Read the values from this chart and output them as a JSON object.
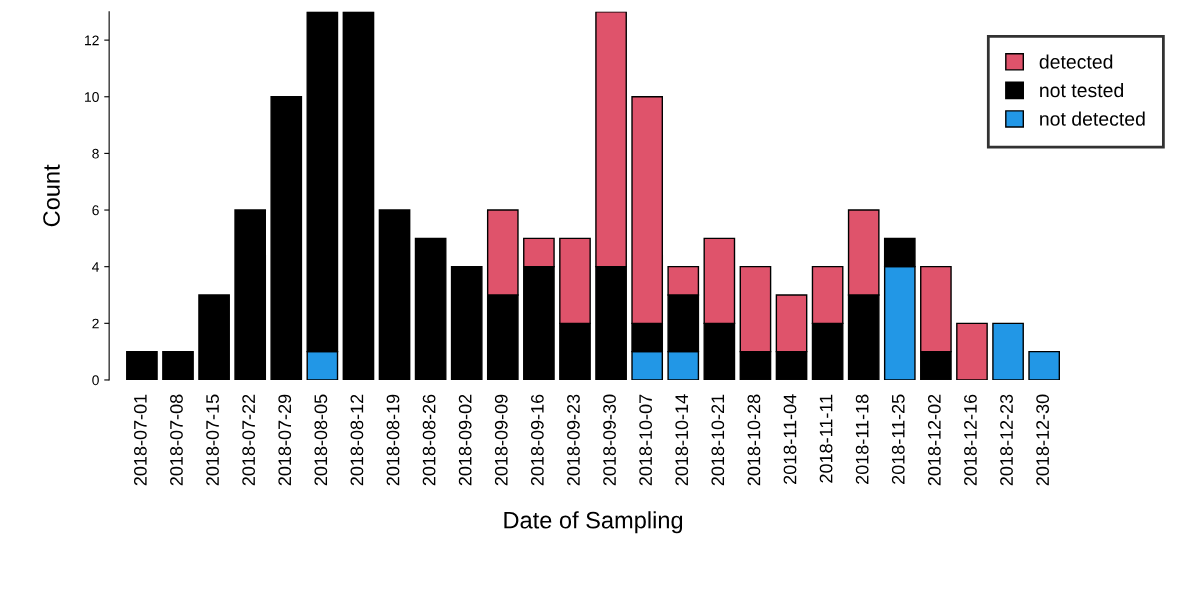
{
  "chart_data": {
    "type": "bar",
    "stacked": true,
    "xlabel": "Date of Sampling",
    "ylabel": "Count",
    "categories": [
      "2018-07-01",
      "2018-07-08",
      "2018-07-15",
      "2018-07-22",
      "2018-07-29",
      "2018-08-05",
      "2018-08-12",
      "2018-08-19",
      "2018-08-26",
      "2018-09-02",
      "2018-09-09",
      "2018-09-16",
      "2018-09-23",
      "2018-09-30",
      "2018-10-07",
      "2018-10-14",
      "2018-10-21",
      "2018-10-28",
      "2018-11-04",
      "2018-11-11",
      "2018-11-18",
      "2018-11-25",
      "2018-12-02",
      "2018-12-16",
      "2018-12-23",
      "2018-12-30"
    ],
    "series": [
      {
        "name": "not detected",
        "color": "#2297e6",
        "values": [
          0,
          0,
          0,
          0,
          0,
          1,
          0,
          0,
          0,
          0,
          0,
          0,
          0,
          0,
          1,
          1,
          0,
          0,
          0,
          0,
          0,
          4,
          0,
          0,
          2,
          1
        ]
      },
      {
        "name": "not tested",
        "color": "#000000",
        "values": [
          1,
          1,
          3,
          6,
          10,
          12,
          13,
          6,
          5,
          4,
          3,
          4,
          2,
          4,
          1,
          2,
          2,
          1,
          1,
          2,
          3,
          1,
          1,
          0,
          0,
          0
        ]
      },
      {
        "name": "detected",
        "color": "#df536b",
        "values": [
          0,
          0,
          0,
          0,
          0,
          0,
          0,
          0,
          0,
          0,
          3,
          1,
          3,
          9,
          8,
          1,
          3,
          3,
          2,
          2,
          3,
          0,
          3,
          2,
          0,
          0
        ]
      }
    ],
    "ylim": [
      0,
      13
    ],
    "yticks": [
      0,
      2,
      4,
      6,
      8,
      10,
      12
    ],
    "grid": false,
    "legend": "top right"
  }
}
